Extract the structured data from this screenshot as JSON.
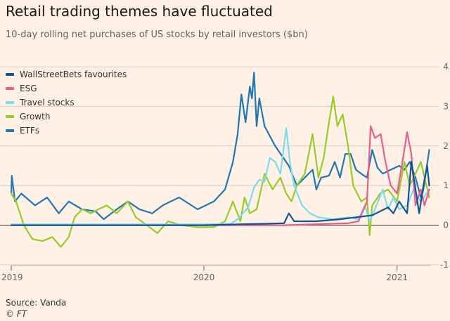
{
  "title": "Retail trading themes have fluctuated",
  "subtitle": "10-day rolling net purchases of US stocks by retail investors ($bn)",
  "source": "Source: Vanda",
  "credit": "© FT",
  "colors": {
    "background": "#fff1e5",
    "grid": "#d9cdc3",
    "zero_line": "#33302e"
  },
  "chart_data": {
    "type": "line",
    "title": "Retail trading themes have fluctuated",
    "subtitle": "10-day rolling net purchases of US stocks by retail investors ($bn)",
    "xlabel": "",
    "ylabel": "",
    "x_type": "date",
    "xlim": [
      "2019-01-01",
      "2021-03-05"
    ],
    "ylim": [
      -1,
      4
    ],
    "y_ticks": [
      -1,
      0,
      1,
      2,
      3,
      4
    ],
    "y_tick_labels": [
      "-1",
      "0",
      "1",
      "2",
      "3",
      "4"
    ],
    "x_ticks": [
      "2019-01-01",
      "2020-01-01",
      "2021-01-01"
    ],
    "x_tick_labels": [
      "2019",
      "2020",
      "2021"
    ],
    "grid": true,
    "legend_position": "top-left",
    "series": [
      {
        "name": "ETFs",
        "color": "#1f77b4",
        "points": [
          [
            "2019-01-01",
            0.8
          ],
          [
            "2019-01-02",
            1.25
          ],
          [
            "2019-01-08",
            0.6
          ],
          [
            "2019-01-20",
            0.8
          ],
          [
            "2019-02-15",
            0.5
          ],
          [
            "2019-03-10",
            0.7
          ],
          [
            "2019-04-01",
            0.3
          ],
          [
            "2019-04-20",
            0.6
          ],
          [
            "2019-05-15",
            0.4
          ],
          [
            "2019-06-10",
            0.35
          ],
          [
            "2019-06-25",
            0.15
          ],
          [
            "2019-07-20",
            0.4
          ],
          [
            "2019-08-10",
            0.6
          ],
          [
            "2019-09-01",
            0.4
          ],
          [
            "2019-09-25",
            0.3
          ],
          [
            "2019-10-15",
            0.5
          ],
          [
            "2019-11-15",
            0.7
          ],
          [
            "2019-12-20",
            0.4
          ],
          [
            "2020-01-20",
            0.6
          ],
          [
            "2020-02-10",
            0.9
          ],
          [
            "2020-02-25",
            1.6
          ],
          [
            "2020-03-05",
            2.3
          ],
          [
            "2020-03-12",
            3.3
          ],
          [
            "2020-03-20",
            2.6
          ],
          [
            "2020-03-28",
            3.5
          ],
          [
            "2020-04-01",
            3.2
          ],
          [
            "2020-04-05",
            3.85
          ],
          [
            "2020-04-10",
            2.5
          ],
          [
            "2020-04-15",
            3.2
          ],
          [
            "2020-04-25",
            2.5
          ],
          [
            "2020-05-15",
            2.0
          ],
          [
            "2020-06-10",
            1.5
          ],
          [
            "2020-06-25",
            1.0
          ],
          [
            "2020-07-10",
            1.2
          ],
          [
            "2020-07-25",
            1.4
          ],
          [
            "2020-08-01",
            0.9
          ],
          [
            "2020-08-10",
            1.2
          ],
          [
            "2020-08-25",
            1.25
          ],
          [
            "2020-09-05",
            1.6
          ],
          [
            "2020-09-15",
            1.2
          ],
          [
            "2020-09-25",
            1.8
          ],
          [
            "2020-10-05",
            1.8
          ],
          [
            "2020-10-15",
            1.4
          ],
          [
            "2020-10-25",
            1.3
          ],
          [
            "2020-11-05",
            1.2
          ],
          [
            "2020-11-15",
            1.9
          ],
          [
            "2020-11-25",
            1.45
          ],
          [
            "2020-12-05",
            1.3
          ],
          [
            "2020-12-20",
            1.4
          ],
          [
            "2021-01-05",
            1.5
          ],
          [
            "2021-01-15",
            1.4
          ],
          [
            "2021-01-25",
            1.6
          ],
          [
            "2021-02-05",
            1.2
          ],
          [
            "2021-02-15",
            0.7
          ],
          [
            "2021-02-20",
            0.9
          ],
          [
            "2021-03-03",
            1.9
          ]
        ]
      },
      {
        "name": "Growth",
        "color": "#96cc28",
        "points": [
          [
            "2019-01-01",
            0.8
          ],
          [
            "2019-01-10",
            0.6
          ],
          [
            "2019-01-25",
            0.0
          ],
          [
            "2019-02-10",
            -0.35
          ],
          [
            "2019-03-01",
            -0.4
          ],
          [
            "2019-03-20",
            -0.3
          ],
          [
            "2019-04-05",
            -0.55
          ],
          [
            "2019-04-20",
            -0.3
          ],
          [
            "2019-05-01",
            0.2
          ],
          [
            "2019-05-15",
            0.4
          ],
          [
            "2019-06-01",
            0.3
          ],
          [
            "2019-06-15",
            0.4
          ],
          [
            "2019-07-01",
            0.5
          ],
          [
            "2019-07-20",
            0.3
          ],
          [
            "2019-08-10",
            0.6
          ],
          [
            "2019-08-25",
            0.2
          ],
          [
            "2019-09-15",
            0.0
          ],
          [
            "2019-10-05",
            -0.2
          ],
          [
            "2019-10-25",
            0.1
          ],
          [
            "2019-11-20",
            0.0
          ],
          [
            "2019-12-20",
            -0.05
          ],
          [
            "2020-01-20",
            -0.05
          ],
          [
            "2020-02-10",
            0.1
          ],
          [
            "2020-02-25",
            0.6
          ],
          [
            "2020-03-10",
            0.1
          ],
          [
            "2020-03-18",
            0.7
          ],
          [
            "2020-03-28",
            0.3
          ],
          [
            "2020-04-10",
            0.4
          ],
          [
            "2020-04-25",
            1.3
          ],
          [
            "2020-05-10",
            0.9
          ],
          [
            "2020-05-25",
            1.2
          ],
          [
            "2020-06-05",
            0.8
          ],
          [
            "2020-06-15",
            0.6
          ],
          [
            "2020-06-25",
            1.0
          ],
          [
            "2020-07-10",
            1.3
          ],
          [
            "2020-07-25",
            2.3
          ],
          [
            "2020-08-05",
            1.2
          ],
          [
            "2020-08-15",
            1.7
          ],
          [
            "2020-08-25",
            2.6
          ],
          [
            "2020-09-02",
            3.25
          ],
          [
            "2020-09-10",
            2.5
          ],
          [
            "2020-09-20",
            2.8
          ],
          [
            "2020-09-30",
            2.0
          ],
          [
            "2020-10-10",
            1.0
          ],
          [
            "2020-10-25",
            0.6
          ],
          [
            "2020-11-05",
            0.7
          ],
          [
            "2020-11-10",
            -0.25
          ],
          [
            "2020-11-15",
            0.5
          ],
          [
            "2020-11-30",
            0.8
          ],
          [
            "2020-12-15",
            0.9
          ],
          [
            "2021-01-01",
            0.6
          ],
          [
            "2021-01-15",
            1.6
          ],
          [
            "2021-01-25",
            1.0
          ],
          [
            "2021-02-05",
            1.3
          ],
          [
            "2021-02-15",
            1.6
          ],
          [
            "2021-03-03",
            0.7
          ]
        ]
      },
      {
        "name": "Travel stocks",
        "color": "#7bdcec",
        "points": [
          [
            "2019-01-01",
            0.02
          ],
          [
            "2019-06-01",
            0.02
          ],
          [
            "2020-01-01",
            0.02
          ],
          [
            "2020-02-20",
            0.03
          ],
          [
            "2020-03-05",
            0.15
          ],
          [
            "2020-03-15",
            0.3
          ],
          [
            "2020-03-25",
            0.45
          ],
          [
            "2020-04-05",
            0.95
          ],
          [
            "2020-04-15",
            1.15
          ],
          [
            "2020-04-25",
            1.1
          ],
          [
            "2020-05-05",
            1.7
          ],
          [
            "2020-05-15",
            1.6
          ],
          [
            "2020-05-25",
            1.3
          ],
          [
            "2020-06-05",
            2.45
          ],
          [
            "2020-06-12",
            1.6
          ],
          [
            "2020-06-20",
            1.0
          ],
          [
            "2020-07-05",
            0.5
          ],
          [
            "2020-07-20",
            0.3
          ],
          [
            "2020-08-05",
            0.2
          ],
          [
            "2020-09-01",
            0.15
          ],
          [
            "2020-10-01",
            0.2
          ],
          [
            "2020-10-20",
            0.15
          ],
          [
            "2020-11-01",
            0.5
          ],
          [
            "2020-11-10",
            0.1
          ],
          [
            "2020-11-20",
            0.4
          ],
          [
            "2020-12-05",
            0.9
          ],
          [
            "2020-12-15",
            0.4
          ],
          [
            "2020-12-25",
            0.7
          ],
          [
            "2021-01-05",
            0.4
          ],
          [
            "2021-01-20",
            0.5
          ],
          [
            "2021-02-01",
            0.9
          ],
          [
            "2021-02-15",
            0.6
          ],
          [
            "2021-03-03",
            0.9
          ]
        ]
      },
      {
        "name": "ESG",
        "color": "#e95d8c",
        "points": [
          [
            "2019-01-01",
            0.0
          ],
          [
            "2020-06-01",
            0.0
          ],
          [
            "2020-10-01",
            0.05
          ],
          [
            "2020-10-20",
            0.1
          ],
          [
            "2020-11-05",
            0.6
          ],
          [
            "2020-11-12",
            2.5
          ],
          [
            "2020-11-20",
            2.2
          ],
          [
            "2020-12-01",
            2.3
          ],
          [
            "2020-12-10",
            1.6
          ],
          [
            "2020-12-20",
            1.0
          ],
          [
            "2021-01-01",
            0.8
          ],
          [
            "2021-01-10",
            1.5
          ],
          [
            "2021-01-20",
            2.35
          ],
          [
            "2021-01-28",
            1.8
          ],
          [
            "2021-02-05",
            0.5
          ],
          [
            "2021-02-15",
            0.9
          ],
          [
            "2021-02-22",
            0.5
          ],
          [
            "2021-03-03",
            0.9
          ]
        ]
      },
      {
        "name": "WallStreetBets favourites",
        "color": "#0f5499",
        "points": [
          [
            "2019-01-01",
            0.0
          ],
          [
            "2019-06-01",
            0.0
          ],
          [
            "2020-01-01",
            0.0
          ],
          [
            "2020-03-01",
            0.02
          ],
          [
            "2020-06-01",
            0.05
          ],
          [
            "2020-06-10",
            0.3
          ],
          [
            "2020-06-20",
            0.1
          ],
          [
            "2020-08-01",
            0.1
          ],
          [
            "2020-09-15",
            0.15
          ],
          [
            "2020-10-15",
            0.2
          ],
          [
            "2020-11-15",
            0.25
          ],
          [
            "2020-12-15",
            0.45
          ],
          [
            "2020-12-25",
            0.3
          ],
          [
            "2021-01-05",
            0.6
          ],
          [
            "2021-01-20",
            0.3
          ],
          [
            "2021-01-28",
            1.6
          ],
          [
            "2021-02-05",
            0.9
          ],
          [
            "2021-02-12",
            0.3
          ],
          [
            "2021-02-20",
            1.0
          ],
          [
            "2021-02-27",
            1.5
          ],
          [
            "2021-03-03",
            1.0
          ]
        ]
      }
    ]
  }
}
